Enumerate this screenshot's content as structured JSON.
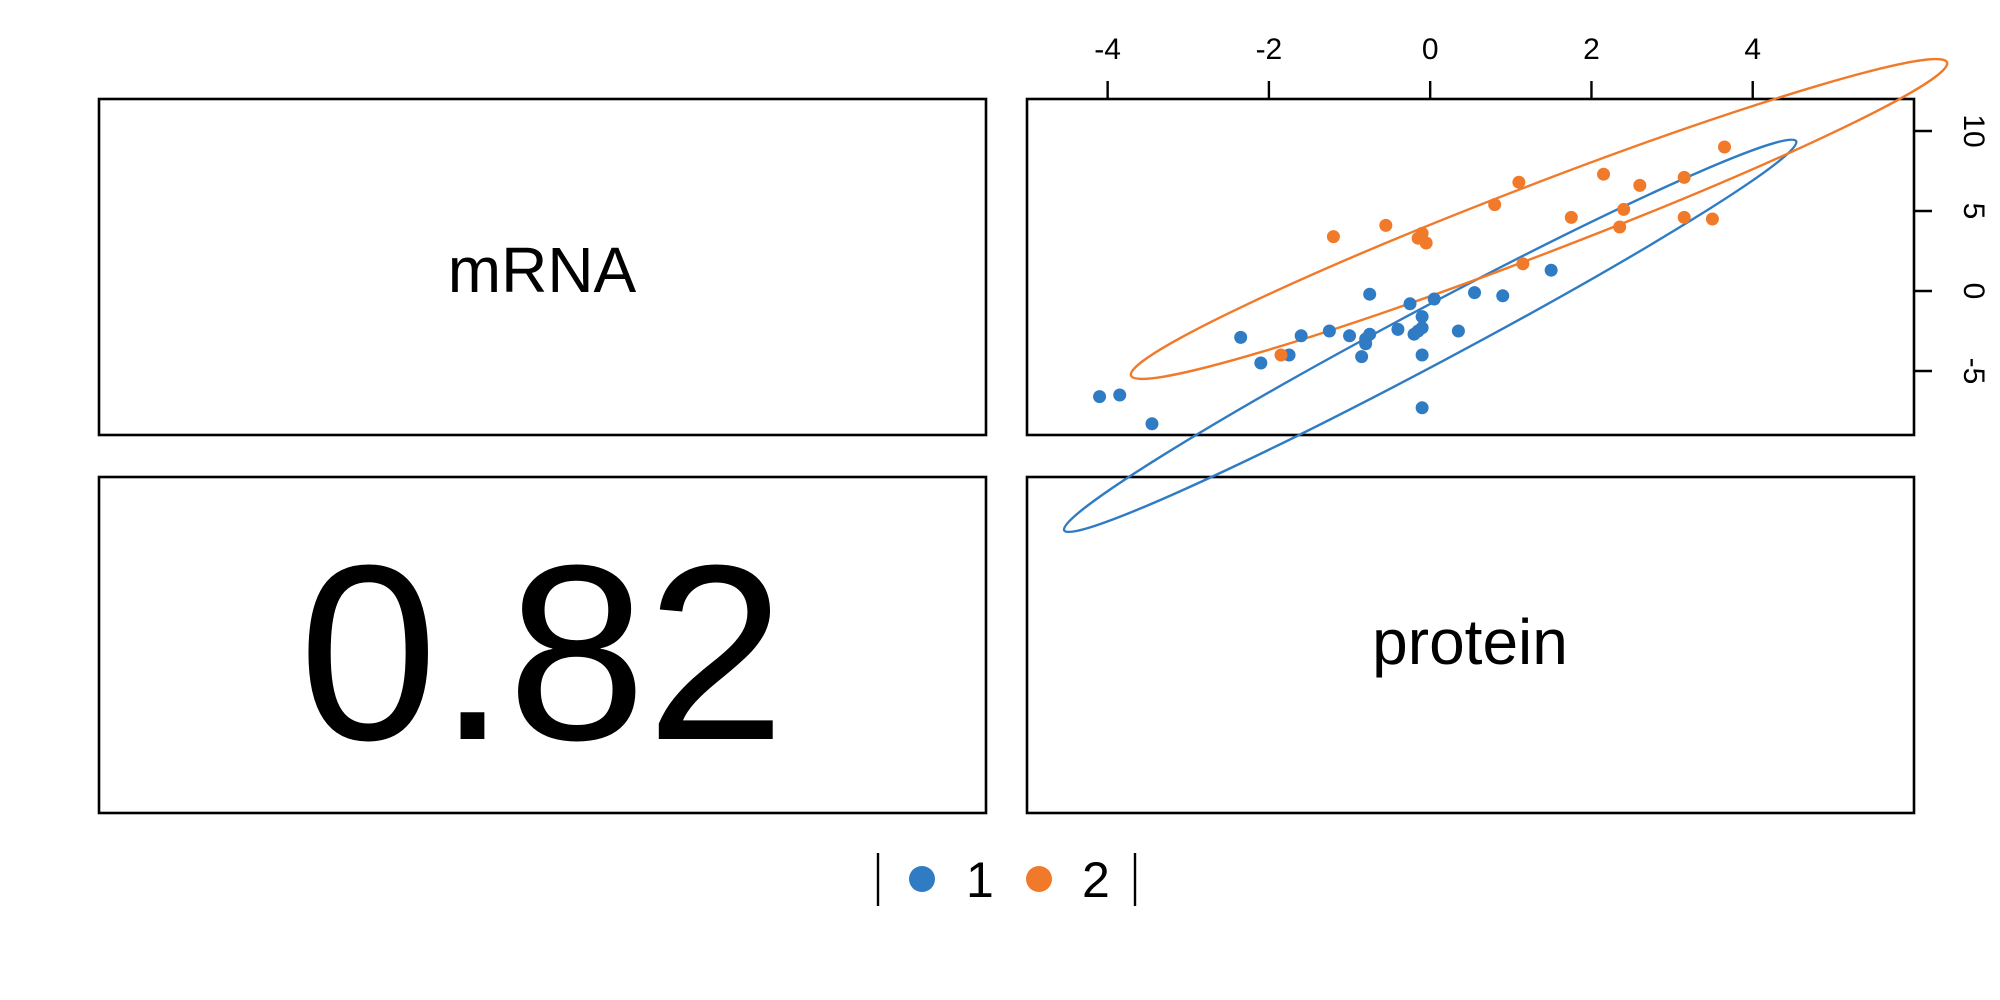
{
  "chart_data": {
    "type": "scatter",
    "variables": [
      "mRNA",
      "protein"
    ],
    "correlation": "0.82",
    "x_axis": {
      "range": [
        -5,
        6
      ],
      "ticks": [
        -4,
        -2,
        0,
        2,
        4
      ],
      "tick_labels": [
        "-4",
        "-2",
        "0",
        "2",
        "4"
      ],
      "position": "top"
    },
    "y_axis": {
      "range": [
        -9,
        12
      ],
      "ticks": [
        -5,
        0,
        5,
        10
      ],
      "tick_labels": [
        "-5",
        "0",
        "5",
        "10"
      ],
      "position": "right"
    },
    "legend": {
      "placement": "bottom-center",
      "entries": [
        "1",
        "2"
      ]
    },
    "series": [
      {
        "name": "1",
        "color": "#2f7bc4",
        "ellipse": {
          "cx": 0.0,
          "cy": -2.8,
          "rx": 5.14,
          "ry": 1.76,
          "angle_deg": -28
        },
        "points": [
          [
            -4.1,
            -6.6
          ],
          [
            -3.85,
            -6.5
          ],
          [
            -3.45,
            -8.3
          ],
          [
            -2.35,
            -2.9
          ],
          [
            -2.1,
            -4.5
          ],
          [
            -1.75,
            -4.0
          ],
          [
            -1.6,
            -2.8
          ],
          [
            -1.25,
            -2.5
          ],
          [
            -1.0,
            -2.8
          ],
          [
            -0.8,
            -3.3
          ],
          [
            -0.85,
            -4.1
          ],
          [
            -0.8,
            -3.0
          ],
          [
            -0.75,
            -2.7
          ],
          [
            -0.75,
            -0.2
          ],
          [
            -0.4,
            -2.4
          ],
          [
            -0.25,
            -0.8
          ],
          [
            -0.2,
            -2.7
          ],
          [
            -0.15,
            -2.5
          ],
          [
            -0.1,
            -2.3
          ],
          [
            -0.1,
            -1.6
          ],
          [
            -0.1,
            -4.0
          ],
          [
            -0.1,
            -7.3
          ],
          [
            0.05,
            -0.5
          ],
          [
            0.35,
            -2.5
          ],
          [
            0.55,
            -0.1
          ],
          [
            0.9,
            -0.3
          ],
          [
            1.5,
            1.3
          ]
        ]
      },
      {
        "name": "2",
        "color": "#f07a2a",
        "ellipse": {
          "cx": 1.35,
          "cy": 4.5,
          "rx": 5.42,
          "ry": 2.16,
          "angle_deg": -21
        },
        "points": [
          [
            -1.85,
            -4.0
          ],
          [
            -1.2,
            3.4
          ],
          [
            -0.55,
            4.1
          ],
          [
            -0.15,
            3.3
          ],
          [
            -0.1,
            3.6
          ],
          [
            -0.05,
            3.0
          ],
          [
            0.8,
            5.4
          ],
          [
            1.1,
            6.8
          ],
          [
            1.15,
            1.7
          ],
          [
            1.75,
            4.6
          ],
          [
            2.15,
            7.3
          ],
          [
            2.35,
            4.0
          ],
          [
            2.4,
            5.1
          ],
          [
            2.6,
            6.6
          ],
          [
            3.15,
            4.6
          ],
          [
            3.15,
            7.1
          ],
          [
            3.5,
            4.5
          ],
          [
            3.65,
            9.0
          ]
        ]
      }
    ]
  }
}
